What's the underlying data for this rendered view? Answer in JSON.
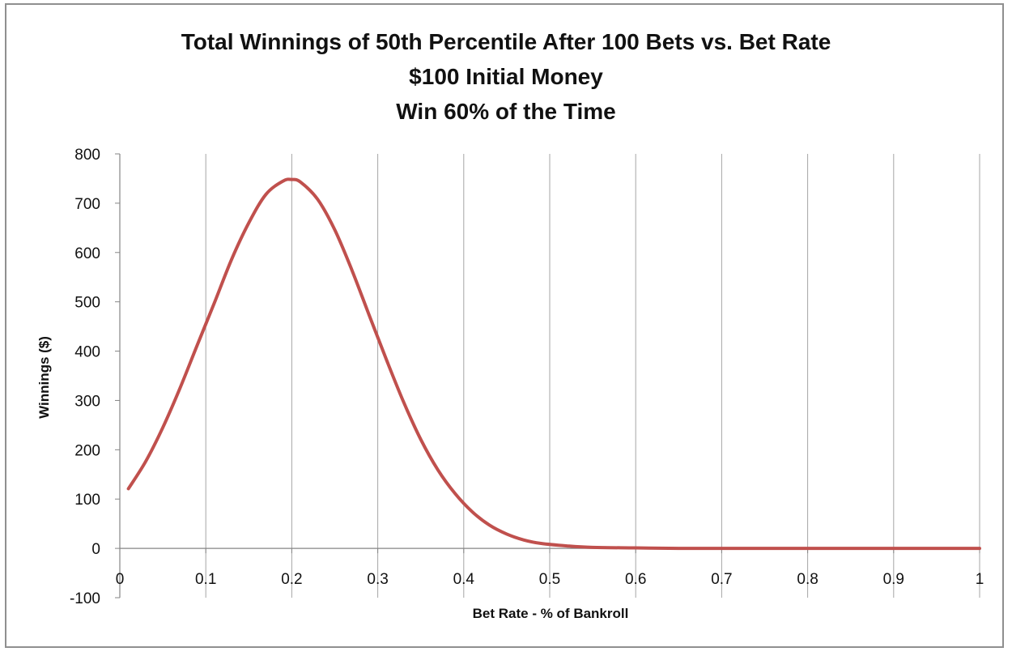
{
  "chart_data": {
    "type": "line",
    "title_lines": [
      "Total Winnings of 50th Percentile After 100 Bets vs. Bet Rate",
      "$100 Initial Money",
      "Win 60% of the Time"
    ],
    "xlabel": "Bet Rate - % of Bankroll",
    "ylabel": "Winnings ($)",
    "xlim": [
      0,
      1
    ],
    "ylim": [
      -100,
      800
    ],
    "x_ticks": [
      "0",
      "0.1",
      "0.2",
      "0.3",
      "0.4",
      "0.5",
      "0.6",
      "0.7",
      "0.8",
      "0.9",
      "1"
    ],
    "y_ticks": [
      "800",
      "700",
      "600",
      "500",
      "400",
      "300",
      "200",
      "100",
      "0",
      "-100"
    ],
    "grid": "vertical",
    "line_color": "#c0504d",
    "series": [
      {
        "x": [
          0.01,
          0.03,
          0.05,
          0.07,
          0.09,
          0.11,
          0.13,
          0.15,
          0.17,
          0.19,
          0.2,
          0.21,
          0.23,
          0.25,
          0.27,
          0.29,
          0.31,
          0.33,
          0.35,
          0.37,
          0.39,
          0.41,
          0.43,
          0.45,
          0.47,
          0.49,
          0.52,
          0.55,
          0.6,
          0.65,
          0.7,
          0.75,
          0.8,
          0.85,
          0.9,
          0.95,
          1.0
        ],
        "y": [
          121,
          176,
          245,
          325,
          412,
          498,
          586,
          660,
          718,
          745,
          748,
          743,
          708,
          646,
          564,
          473,
          383,
          297,
          221,
          159,
          111,
          74,
          47,
          29,
          17,
          10,
          5,
          2,
          1,
          0,
          0,
          0,
          0,
          0,
          0,
          0,
          0
        ]
      }
    ]
  }
}
